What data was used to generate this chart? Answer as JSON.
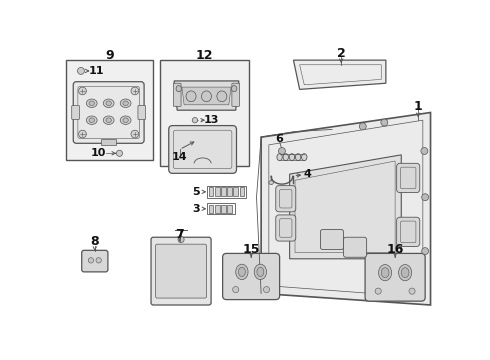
{
  "bg_color": "#ffffff",
  "line_color": "#555555",
  "label_color": "#111111",
  "box_bg": "#eeeeee",
  "fig_width": 4.9,
  "fig_height": 3.6,
  "dpi": 100,
  "font_size": 9
}
